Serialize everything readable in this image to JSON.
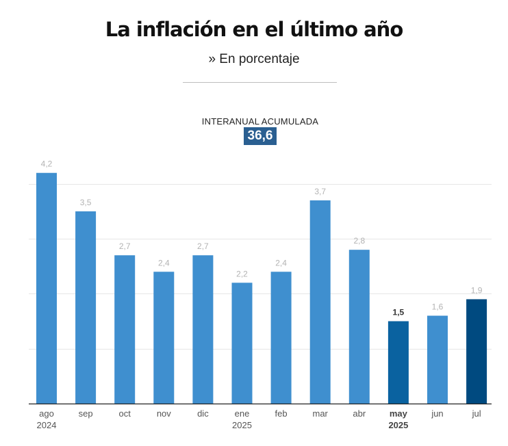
{
  "title": "La inflación en el último año",
  "subtitle": "» En porcentaje",
  "callout": {
    "label": "INTERANUAL ACUMULADA",
    "value": "36,6"
  },
  "colors": {
    "bar": "#3f8fcf",
    "bar_highlight_1": "#0a62a0",
    "bar_highlight_2": "#004a80",
    "gridline": "#e6e6e6",
    "axis": "#222222"
  },
  "chart_data": {
    "type": "bar",
    "categories": [
      "ago",
      "sep",
      "oct",
      "nov",
      "dic",
      "ene",
      "feb",
      "mar",
      "abr",
      "may",
      "jun",
      "jul"
    ],
    "year_labels": [
      "2024",
      "",
      "",
      "",
      "",
      "2025",
      "",
      "",
      "",
      "2025",
      "",
      ""
    ],
    "values": [
      4.2,
      3.5,
      2.7,
      2.4,
      2.7,
      2.2,
      2.4,
      3.7,
      2.8,
      1.5,
      1.6,
      1.9
    ],
    "value_labels": [
      "4,2",
      "3,5",
      "2,7",
      "2,4",
      "2,7",
      "2,2",
      "2,4",
      "3,7",
      "2,8",
      "1,5",
      "1,6",
      "1,9"
    ],
    "highlighted": [
      "may",
      "jul"
    ],
    "bold_labels": [
      "may"
    ],
    "ylim": [
      0,
      4.5
    ],
    "gridlines": [
      1,
      2,
      3,
      4
    ],
    "grid": true,
    "xlabel": "",
    "ylabel": ""
  }
}
